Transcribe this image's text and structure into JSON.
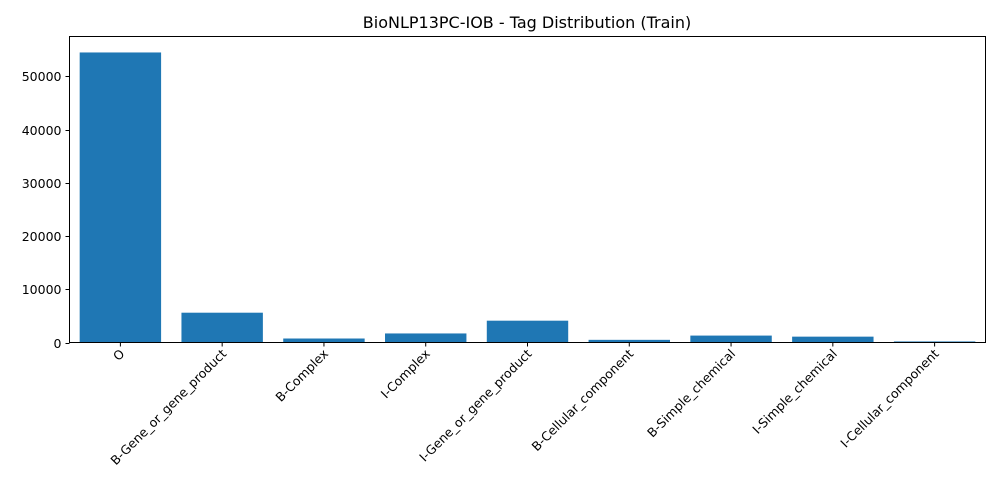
{
  "chart_data": {
    "type": "bar",
    "title": "BioNLP13PC-IOB - Tag Distribution (Train)",
    "xlabel": "",
    "ylabel": "",
    "categories": [
      "O",
      "B-Gene_or_gene_product",
      "B-Complex",
      "I-Complex",
      "I-Gene_or_gene_product",
      "B-Cellular_component",
      "B-Simple_chemical",
      "I-Simple_chemical",
      "I-Cellular_component"
    ],
    "values": [
      54500,
      5600,
      750,
      1700,
      4100,
      500,
      1300,
      1100,
      200
    ],
    "ylim": [
      0,
      57500
    ],
    "yticks": [
      0,
      10000,
      20000,
      30000,
      40000,
      50000
    ],
    "bar_color": "#1f77b4",
    "grid": false,
    "legend": "none",
    "xtick_rotation": 45
  }
}
